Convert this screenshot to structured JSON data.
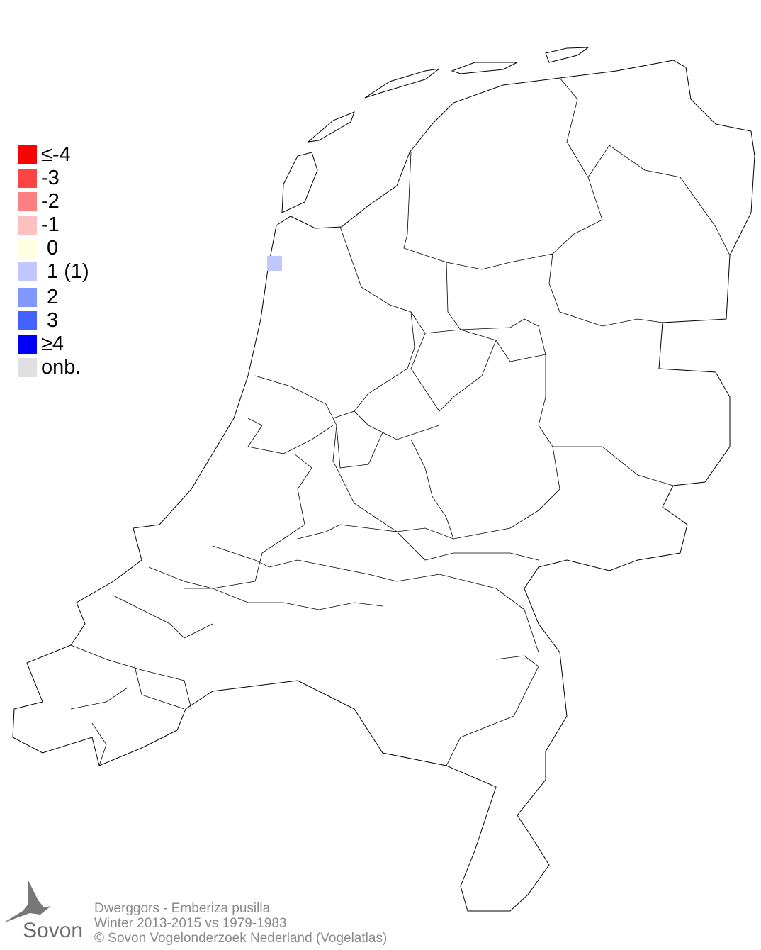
{
  "map": {
    "region": "Nederland",
    "cells": [
      {
        "value_class": "1",
        "color": "#c0c8ff"
      }
    ]
  },
  "legend": {
    "items": [
      {
        "label": "≤-4",
        "color": "#ff0000"
      },
      {
        "label": "-3",
        "color": "#ff4444"
      },
      {
        "label": "-2",
        "color": "#ff8080"
      },
      {
        "label": "-1",
        "color": "#ffc0c0"
      },
      {
        "label": " 0",
        "color": "#ffffe0"
      },
      {
        "label": " 1 (1)",
        "color": "#c0c8ff"
      },
      {
        "label": " 2",
        "color": "#8098ff"
      },
      {
        "label": " 3",
        "color": "#4462ff"
      },
      {
        "label": "≥4",
        "color": "#0000ff"
      },
      {
        "label": "onb.",
        "color": "#e0e0e0"
      }
    ]
  },
  "footer": {
    "line1": "Dwerggors - Emberiza pusilla",
    "line2": "Winter 2013-2015 vs 1979-1983",
    "line3": "© Sovon Vogelonderzoek Nederland (Vogelatlas)"
  },
  "logo": {
    "text": "Sovon"
  }
}
